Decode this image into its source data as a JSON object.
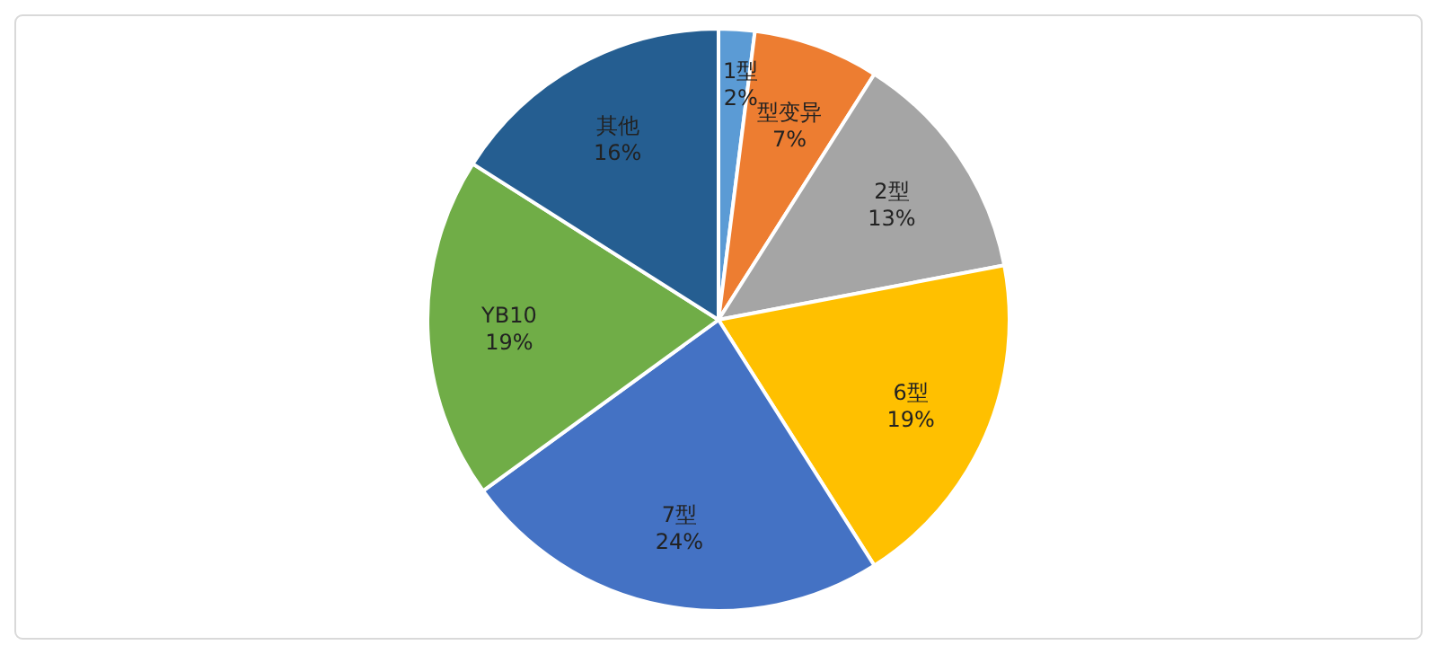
{
  "chart_data": {
    "type": "pie",
    "categories": [
      "1型",
      "型变异",
      "2型",
      "6型",
      "7型",
      "YB10",
      "其他"
    ],
    "values": [
      2,
      7,
      13,
      19,
      24,
      19,
      16
    ],
    "value_labels": [
      "2%",
      "7%",
      "13%",
      "19%",
      "24%",
      "19%",
      "16%"
    ],
    "colors": [
      "#5b9bd5",
      "#ed7d31",
      "#a5a5a5",
      "#ffc000",
      "#4472c4",
      "#70ad47",
      "#255e91"
    ]
  }
}
